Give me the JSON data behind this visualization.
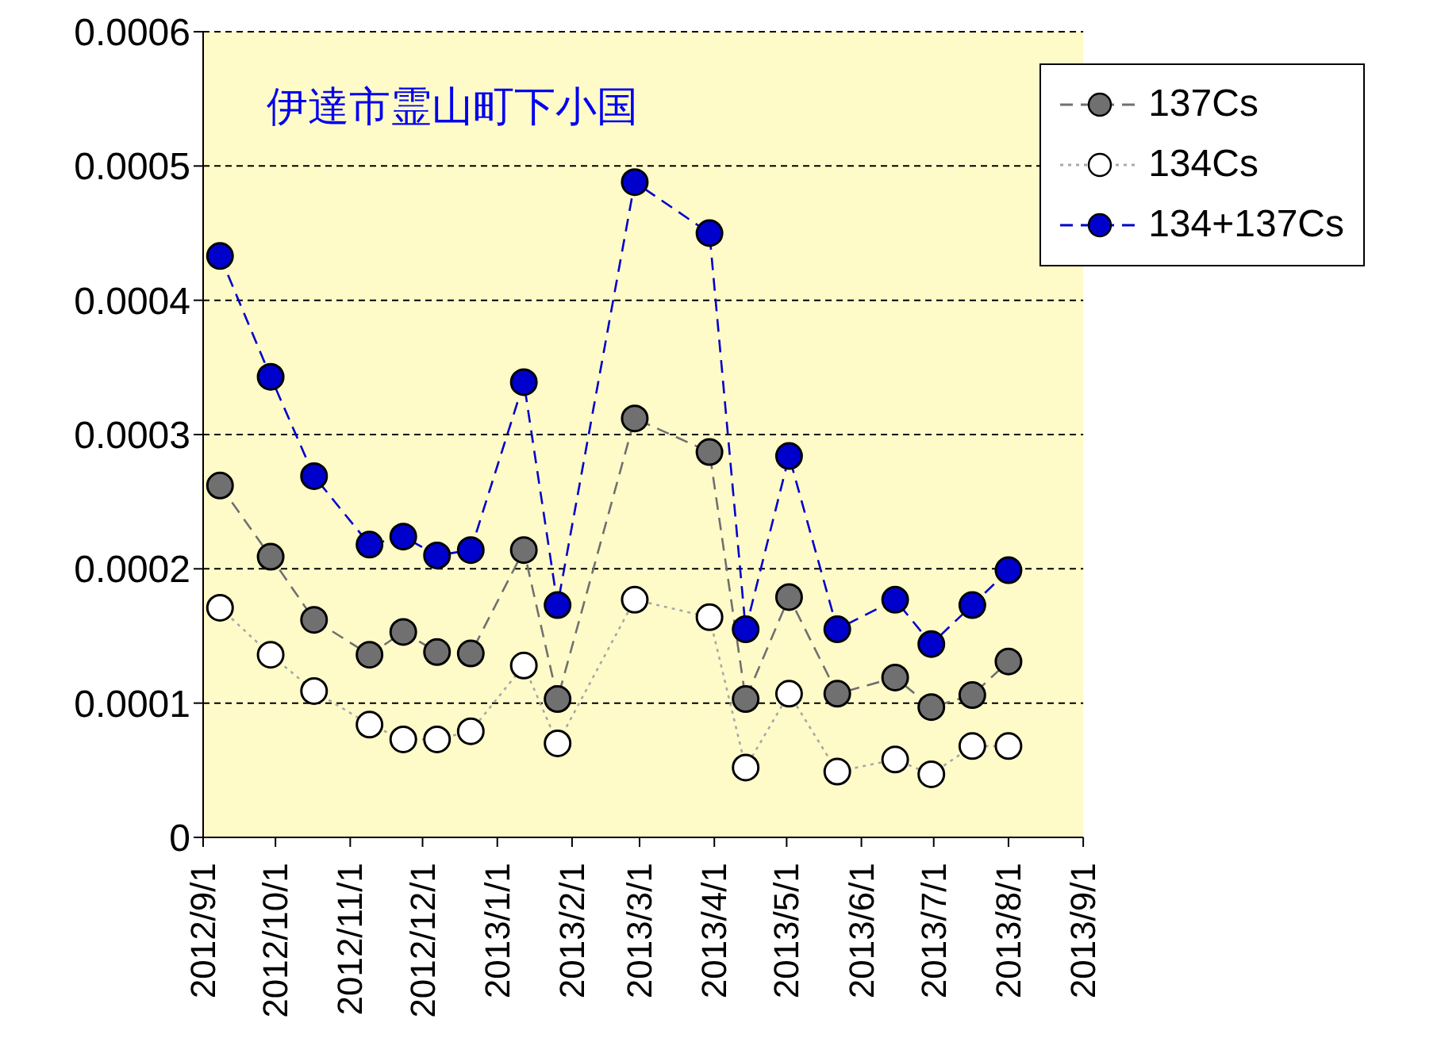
{
  "chart_data": {
    "type": "line",
    "title": "伊達市霊山町下小国",
    "x": [
      "2012-09-08",
      "2012-09-29",
      "2012-10-17",
      "2012-11-09",
      "2012-11-23",
      "2012-12-07",
      "2012-12-21",
      "2013-01-12",
      "2013-01-26",
      "2013-02-27",
      "2013-03-30",
      "2013-04-14",
      "2013-05-02",
      "2013-05-22",
      "2013-06-15",
      "2013-06-30",
      "2013-07-17",
      "2013-08-01"
    ],
    "series": [
      {
        "name": "137Cs",
        "color": "#707070",
        "line_style": "dashed",
        "values": [
          0.000262,
          0.000209,
          0.000162,
          0.000136,
          0.000153,
          0.000138,
          0.000137,
          0.000214,
          0.000103,
          0.000312,
          0.000287,
          0.000103,
          0.000179,
          0.000107,
          0.000119,
          9.7e-05,
          0.000106,
          0.000131
        ]
      },
      {
        "name": "134Cs",
        "color": "#ffffff",
        "line_style": "dotted",
        "values": [
          0.000171,
          0.000136,
          0.000109,
          8.4e-05,
          7.3e-05,
          7.3e-05,
          7.9e-05,
          0.000128,
          7e-05,
          0.000177,
          0.000164,
          5.2e-05,
          0.000107,
          4.9e-05,
          5.8e-05,
          4.7e-05,
          6.8e-05,
          6.8e-05
        ]
      },
      {
        "name": "134+137Cs",
        "color": "#0000cc",
        "line_style": "dashed",
        "values": [
          0.000433,
          0.000343,
          0.000269,
          0.000218,
          0.000224,
          0.00021,
          0.000214,
          0.000339,
          0.000173,
          0.000488,
          0.00045,
          0.000155,
          0.000284,
          0.000155,
          0.000177,
          0.000144,
          0.000173,
          0.000199
        ]
      }
    ],
    "xlim": [
      "2012-09-01",
      "2013-09-01"
    ],
    "xticks": [
      {
        "value": "2012-09-01",
        "label": "2012/9/1"
      },
      {
        "value": "2012-10-01",
        "label": "2012/10/1"
      },
      {
        "value": "2012-11-01",
        "label": "2012/11/1"
      },
      {
        "value": "2012-12-01",
        "label": "2012/12/1"
      },
      {
        "value": "2013-01-01",
        "label": "2013/1/1"
      },
      {
        "value": "2013-02-01",
        "label": "2013/2/1"
      },
      {
        "value": "2013-03-01",
        "label": "2013/3/1"
      },
      {
        "value": "2013-04-01",
        "label": "2013/4/1"
      },
      {
        "value": "2013-05-01",
        "label": "2013/5/1"
      },
      {
        "value": "2013-06-01",
        "label": "2013/6/1"
      },
      {
        "value": "2013-07-01",
        "label": "2013/7/1"
      },
      {
        "value": "2013-08-01",
        "label": "2013/8/1"
      },
      {
        "value": "2013-09-01",
        "label": "2013/9/1"
      }
    ],
    "ylim": [
      0,
      0.0006
    ],
    "yticks": [
      0,
      0.0001,
      0.0002,
      0.0003,
      0.0004,
      0.0005,
      0.0006
    ],
    "grid": "y",
    "legend": "top right",
    "marker": "circle"
  }
}
